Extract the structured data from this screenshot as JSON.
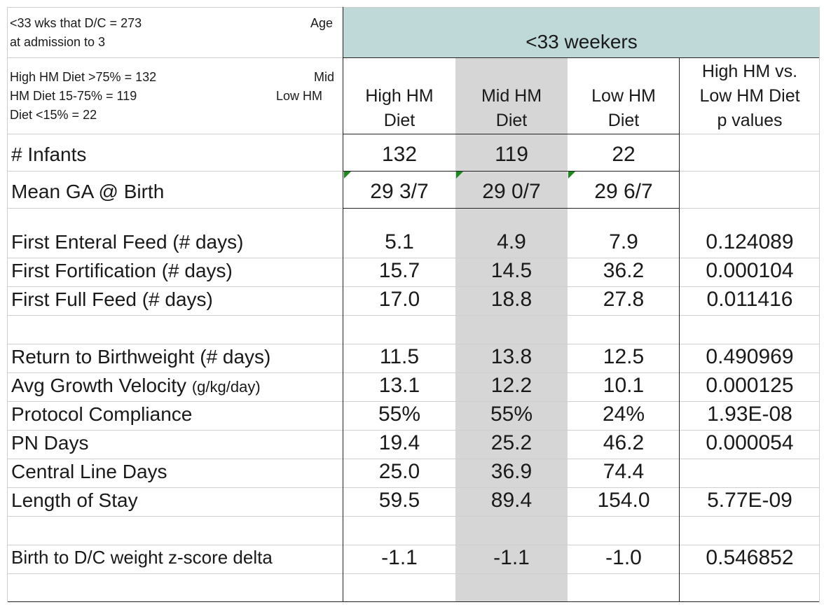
{
  "top_left": {
    "line1": "<33 wks that D/C = 273",
    "line1_right": "Age",
    "line2": "at admission to 3"
  },
  "legend": {
    "line1": "High HM Diet >75% = 132",
    "line1_right": "Mid",
    "line2": "HM Diet 15-75% = 119",
    "line2_right": "Low HM",
    "line3": "Diet <15% = 22"
  },
  "group_header": "<33 weekers",
  "columns": {
    "high": [
      "High HM",
      "Diet"
    ],
    "mid": [
      "Mid HM",
      "Diet"
    ],
    "low": [
      "Low HM",
      "Diet"
    ],
    "p": [
      "High HM vs.",
      "Low HM Diet",
      "p values"
    ]
  },
  "infants": {
    "label": "# Infants",
    "high": "132",
    "mid": "119",
    "low": "22"
  },
  "ga": {
    "label": "Mean GA @ Birth",
    "high": "29 3/7",
    "mid": "29 0/7",
    "low": "29 6/7"
  },
  "rows": [
    {
      "label": "First Enteral Feed (# days)",
      "sub": "",
      "high": "5.1",
      "mid": "4.9",
      "low": "7.9",
      "p": "0.124089"
    },
    {
      "label": "First Fortification (# days)",
      "sub": "",
      "high": "15.7",
      "mid": "14.5",
      "low": "36.2",
      "p": "0.000104"
    },
    {
      "label": "First Full Feed (# days)",
      "sub": "",
      "high": "17.0",
      "mid": "18.8",
      "low": "27.8",
      "p": "0.011416"
    },
    {
      "label": "Return to Birthweight (# days)",
      "sub": "",
      "high": "11.5",
      "mid": "13.8",
      "low": "12.5",
      "p": "0.490969"
    },
    {
      "label": "Avg Growth Velocity",
      "sub": "(g/kg/day)",
      "high": "13.1",
      "mid": "12.2",
      "low": "10.1",
      "p": "0.000125"
    },
    {
      "label": "Protocol Compliance",
      "sub": "",
      "high": "55%",
      "mid": "55%",
      "low": "24%",
      "p": "1.93E-08"
    },
    {
      "label": "PN Days",
      "sub": "",
      "high": "19.4",
      "mid": "25.2",
      "low": "46.2",
      "p": "0.000054"
    },
    {
      "label": "Central Line Days",
      "sub": "",
      "high": "25.0",
      "mid": "36.9",
      "low": "74.4",
      "p": ""
    },
    {
      "label": "Length of Stay",
      "sub": "",
      "high": "59.5",
      "mid": "89.4",
      "low": "154.0",
      "p": "5.77E-09"
    },
    {
      "label": "Birth to D/C weight z-score delta",
      "sub": "",
      "high": "-1.1",
      "mid": "-1.1",
      "low": "-1.0",
      "p": "0.546852"
    }
  ],
  "colors": {
    "header_band": "#bfd9d9",
    "mid_column": "#d6d6d6",
    "comment_marker": "#1a8a1a"
  }
}
